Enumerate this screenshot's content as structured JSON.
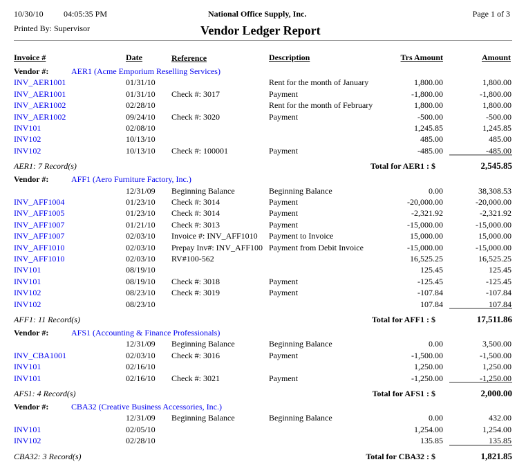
{
  "header": {
    "date": "10/30/10",
    "time": "04:05:35 PM",
    "company": "National Office Supply, Inc.",
    "page": "Page 1 of 3",
    "printed_by": "Printed By: Supervisor",
    "title": "Vendor Ledger Report"
  },
  "columns": {
    "invoice": "Invoice #",
    "date": "Date",
    "reference": "Reference",
    "description": "Description",
    "trs_amount": "Trs Amount",
    "amount": "Amount"
  },
  "vendor_label": "Vendor #:",
  "groups": [
    {
      "vendor": "AER1 (Acme Emporium Reselling Services)",
      "rows": [
        [
          "INV_AER1001",
          "01/31/10",
          "",
          "Rent for the month of January",
          "1,800.00",
          "1,800.00"
        ],
        [
          "INV_AER1001",
          "01/31/10",
          "Check #: 3017",
          "Payment",
          "-1,800.00",
          "-1,800.00"
        ],
        [
          "INV_AER1002",
          "02/28/10",
          "",
          "Rent for the month of February",
          "1,800.00",
          "1,800.00"
        ],
        [
          "INV_AER1002",
          "09/24/10",
          "Check #: 3020",
          "Payment",
          "-500.00",
          "-500.00"
        ],
        [
          "INV101",
          "02/08/10",
          "",
          "",
          "1,245.85",
          "1,245.85"
        ],
        [
          "INV102",
          "10/13/10",
          "",
          "",
          "485.00",
          "485.00"
        ],
        [
          "INV102",
          "10/13/10",
          "Check #: 100001",
          "Payment",
          "-485.00",
          "-485.00"
        ]
      ],
      "records": "AER1: 7 Record(s)",
      "total_label": "Total for AER1 : $",
      "total": "2,545.85"
    },
    {
      "vendor": "AFF1 (Aero Furniture Factory, Inc.)",
      "rows": [
        [
          "",
          "12/31/09",
          "Beginning Balance",
          "Beginning Balance",
          "0.00",
          "38,308.53"
        ],
        [
          "INV_AFF1004",
          "01/23/10",
          "Check #: 3014",
          "Payment",
          "-20,000.00",
          "-20,000.00"
        ],
        [
          "INV_AFF1005",
          "01/23/10",
          "Check #: 3014",
          "Payment",
          "-2,321.92",
          "-2,321.92"
        ],
        [
          "INV_AFF1007",
          "01/21/10",
          "Check #: 3013",
          "Payment",
          "-15,000.00",
          "-15,000.00"
        ],
        [
          "INV_AFF1007",
          "02/03/10",
          "Invoice #: INV_AFF1010",
          "Payment to Invoice",
          "15,000.00",
          "15,000.00"
        ],
        [
          "INV_AFF1010",
          "02/03/10",
          "Prepay Inv#: INV_AFF100",
          "Payment from Debit Invoice",
          "-15,000.00",
          "-15,000.00"
        ],
        [
          "INV_AFF1010",
          "02/03/10",
          "RV#100-562",
          "",
          "16,525.25",
          "16,525.25"
        ],
        [
          "INV101",
          "08/19/10",
          "",
          "",
          "125.45",
          "125.45"
        ],
        [
          "INV101",
          "08/19/10",
          "Check #: 3018",
          "Payment",
          "-125.45",
          "-125.45"
        ],
        [
          "INV102",
          "08/23/10",
          "Check #: 3019",
          "Payment",
          "-107.84",
          "-107.84"
        ],
        [
          "INV102",
          "08/23/10",
          "",
          "",
          "107.84",
          "107.84"
        ]
      ],
      "records": "AFF1: 11 Record(s)",
      "total_label": "Total for AFF1 : $",
      "total": "17,511.86"
    },
    {
      "vendor": "AFS1 (Accounting & Finance Professionals)",
      "rows": [
        [
          "",
          "12/31/09",
          "Beginning Balance",
          "Beginning Balance",
          "0.00",
          "3,500.00"
        ],
        [
          "INV_CBA1001",
          "02/03/10",
          "Check #: 3016",
          "Payment",
          "-1,500.00",
          "-1,500.00"
        ],
        [
          "INV101",
          "02/16/10",
          "",
          "",
          "1,250.00",
          "1,250.00"
        ],
        [
          "INV101",
          "02/16/10",
          "Check #: 3021",
          "Payment",
          "-1,250.00",
          "-1,250.00"
        ]
      ],
      "records": "AFS1: 4 Record(s)",
      "total_label": "Total for AFS1 : $",
      "total": "2,000.00"
    },
    {
      "vendor": "CBA32 (Creative Business Accessories, Inc.)",
      "rows": [
        [
          "",
          "12/31/09",
          "Beginning Balance",
          "Beginning Balance",
          "0.00",
          "432.00"
        ],
        [
          "INV101",
          "02/05/10",
          "",
          "",
          "1,254.00",
          "1,254.00"
        ],
        [
          "INV102",
          "02/28/10",
          "",
          "",
          "135.85",
          "135.85"
        ]
      ],
      "records": "CBA32: 3 Record(s)",
      "total_label": "Total for CBA32 : $",
      "total": "1,821.85"
    }
  ]
}
